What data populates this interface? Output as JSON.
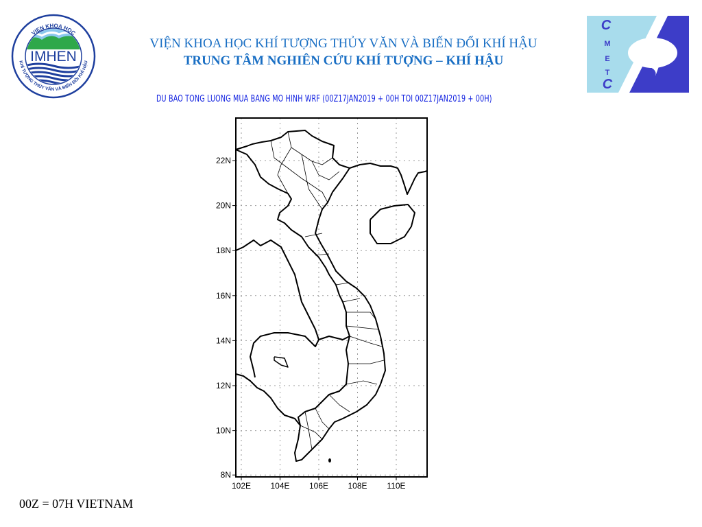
{
  "header": {
    "institute": "VIỆN KHOA HỌC KHÍ TƯỢNG THỦY VĂN VÀ BIẾN ĐỔI KHÍ HẬU",
    "center": "TRUNG TÂM NGHIÊN CỨU KHÍ TƯỢNG – KHÍ HẬU",
    "map_title": "DU BAO TONG LUONG MUA BANG MO HINH WRF (00Z17JAN2019 + 00H TOI 00Z17JAN2019 + 00H)"
  },
  "logos": {
    "left": {
      "ring_top": "VIEN KHOA HOC",
      "ring_bottom": "KHÍ TƯỢNG THỦY VĂN VÀ BIẾN ĐỔI KHÍ HẬU",
      "name": "IMHEN"
    },
    "right": {
      "letters": [
        "C",
        "M",
        "E",
        "T",
        "C"
      ]
    }
  },
  "map": {
    "lat_labels": [
      "22N",
      "20N",
      "18N",
      "16N",
      "14N",
      "12N",
      "10N",
      "8N"
    ],
    "lon_labels": [
      "102E",
      "104E",
      "106E",
      "108E",
      "110E"
    ]
  },
  "footer": {
    "note": "00Z = 07H VIETNAM"
  },
  "colors": {
    "title": "#1a6fc4",
    "map_title": "#1020e0",
    "cmetc_light": "#a8dcec",
    "cmetc_dark": "#3d3dc8"
  }
}
